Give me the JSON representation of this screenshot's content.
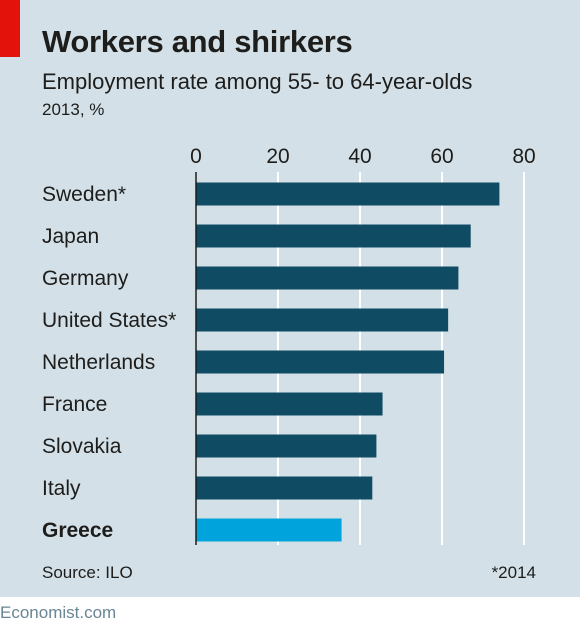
{
  "header": {
    "title": "Workers and shirkers",
    "subtitle": "Employment rate among 55- to 64-year-olds",
    "unit": "2013, %"
  },
  "footer": {
    "source": "Source: ILO",
    "footnote": "*2014",
    "brand": "Economist.com"
  },
  "colors": {
    "background": "#d3e0e7",
    "bar": "#0f4c64",
    "highlight_bar": "#00a3db",
    "accent": "#e3120b"
  },
  "chart_data": {
    "type": "bar",
    "orientation": "horizontal",
    "categories": [
      "Sweden*",
      "Japan",
      "Germany",
      "United States*",
      "Netherlands",
      "France",
      "Slovakia",
      "Italy",
      "Greece"
    ],
    "values": [
      74,
      67,
      64,
      61.5,
      60.5,
      45.5,
      44,
      43,
      35.5
    ],
    "highlight": "Greece",
    "xticks": [
      0,
      20,
      40,
      60,
      80
    ],
    "xlim": [
      0,
      80
    ],
    "xaxis_position": "top",
    "grid": true
  }
}
